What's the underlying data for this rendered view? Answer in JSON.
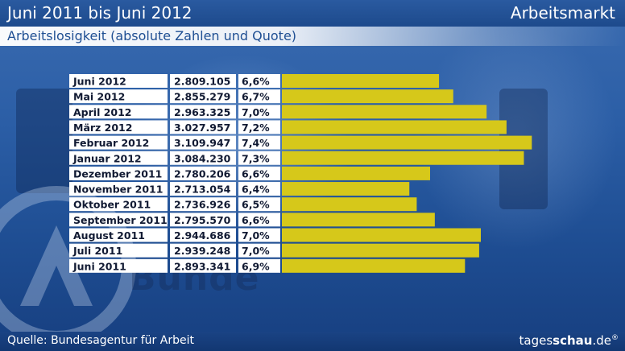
{
  "header": {
    "title": "Juni 2011 bis Juni 2012",
    "topic": "Arbeitsmarkt",
    "subtitle": "Arbeitslosigkeit (absolute Zahlen und Quote)"
  },
  "footer": {
    "source": "Quelle: Bundesagentur für Arbeit",
    "brand_prefix": "tages",
    "brand_bold": "schau",
    "brand_suffix": ".de",
    "brand_mark": "®"
  },
  "colors": {
    "bar": "#d6c81a",
    "background": "#1f4f93",
    "cell": "#ffffff"
  },
  "chart_data": {
    "type": "bar",
    "orientation": "horizontal",
    "title": "Arbeitslosigkeit (absolute Zahlen und Quote)",
    "categories": [
      "Juni 2012",
      "Mai 2012",
      "April 2012",
      "März 2012",
      "Februar 2012",
      "Januar 2012",
      "Dezember 2011",
      "November 2011",
      "Oktober 2011",
      "September 2011",
      "August 2011",
      "Juli 2011",
      "Juni 2011"
    ],
    "values": [
      2809105,
      2855279,
      2963325,
      3027957,
      3109947,
      3084230,
      2780206,
      2713054,
      2736926,
      2795570,
      2944686,
      2939248,
      2893341
    ],
    "value_labels": [
      "2.809.105",
      "2.855.279",
      "2.963.325",
      "3.027.957",
      "3.109.947",
      "3.084.230",
      "2.780.206",
      "2.713.054",
      "2.736.926",
      "2.795.570",
      "2.944.686",
      "2.939.248",
      "2.893.341"
    ],
    "rate_labels": [
      "6,6%",
      "6,7%",
      "7,0%",
      "7,2%",
      "7,4%",
      "7,3%",
      "6,6%",
      "6,4%",
      "6,5%",
      "6,6%",
      "7,0%",
      "7,0%",
      "6,9%"
    ],
    "xlim": [
      2300000,
      3130000
    ],
    "xlabel": "",
    "ylabel": ""
  }
}
